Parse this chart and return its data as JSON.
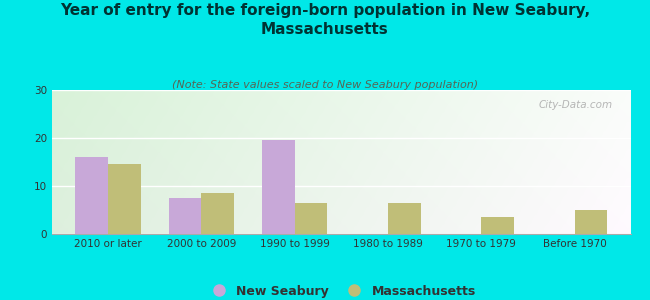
{
  "title": "Year of entry for the foreign-born population in New Seabury,\nMassachusetts",
  "subtitle": "(Note: State values scaled to New Seabury population)",
  "categories": [
    "2010 or later",
    "2000 to 2009",
    "1990 to 1999",
    "1980 to 1989",
    "1970 to 1979",
    "Before 1970"
  ],
  "new_seabury": [
    16,
    7.5,
    19.5,
    0,
    0,
    0
  ],
  "massachusetts": [
    14.5,
    8.5,
    6.5,
    6.5,
    3.5,
    5
  ],
  "new_seabury_color": "#c8a8d8",
  "massachusetts_color": "#c0be78",
  "background_color": "#00e8e8",
  "plot_bg_left": "#c8e8d0",
  "plot_bg_right": "#f8f8f8",
  "ylim": [
    0,
    30
  ],
  "yticks": [
    0,
    10,
    20,
    30
  ],
  "bar_width": 0.35,
  "title_fontsize": 11,
  "subtitle_fontsize": 8,
  "tick_fontsize": 7.5,
  "legend_fontsize": 9,
  "title_color": "#003333",
  "subtitle_color": "#556655",
  "watermark": "City-Data.com"
}
